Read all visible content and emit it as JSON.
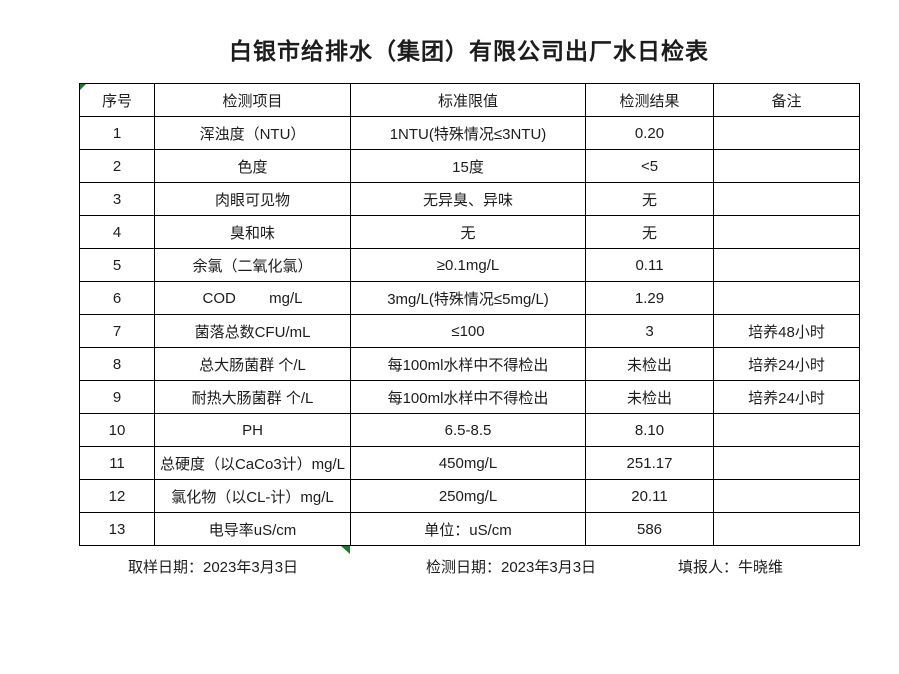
{
  "title": "白银市给排水（集团）有限公司出厂水日检表",
  "table": {
    "headers": [
      "序号",
      "检测项目",
      "标准限值",
      "检测结果",
      "备注"
    ],
    "rows": [
      {
        "no": "1",
        "item": "浑浊度（NTU）",
        "standard": "1NTU(特殊情况≤3NTU)",
        "result": "0.20",
        "remark": ""
      },
      {
        "no": "2",
        "item": "色度",
        "standard": "15度",
        "result": "<5",
        "remark": ""
      },
      {
        "no": "3",
        "item": "肉眼可见物",
        "standard": "无异臭、异味",
        "result": "无",
        "remark": ""
      },
      {
        "no": "4",
        "item": "臭和味",
        "standard": "无",
        "result": "无",
        "remark": ""
      },
      {
        "no": "5",
        "item": "余氯（二氧化氯）",
        "standard": "≥0.1mg/L",
        "result": "0.11",
        "remark": ""
      },
      {
        "no": "6",
        "item": "COD        mg/L",
        "standard": "3mg/L(特殊情况≤5mg/L)",
        "result": "1.29",
        "remark": ""
      },
      {
        "no": "7",
        "item": "菌落总数CFU/mL",
        "standard": "≤100",
        "result": "3",
        "remark": "培养48小时"
      },
      {
        "no": "8",
        "item": "总大肠菌群 个/L",
        "standard": "每100ml水样中不得检出",
        "result": "未检出",
        "remark": "培养24小时"
      },
      {
        "no": "9",
        "item": "耐热大肠菌群 个/L",
        "standard": "每100ml水样中不得检出",
        "result": "未检出",
        "remark": "培养24小时"
      },
      {
        "no": "10",
        "item": "PH",
        "standard": "6.5-8.5",
        "result": "8.10",
        "remark": ""
      },
      {
        "no": "11",
        "item": "总硬度（以CaCo3计）mg/L",
        "standard": "450mg/L",
        "result": "251.17",
        "remark": ""
      },
      {
        "no": "12",
        "item": "氯化物（以CL-计）mg/L",
        "standard": "250mg/L",
        "result": "20.11",
        "remark": ""
      },
      {
        "no": "13",
        "item": "电导率uS/cm",
        "standard": "单位：uS/cm",
        "result": "586",
        "remark": ""
      }
    ]
  },
  "footer": {
    "sampling_date": "取样日期：2023年3月3日",
    "test_date": "检测日期：2023年3月3日",
    "reporter": "填报人：牛晓维"
  },
  "colors": {
    "background": "#ffffff",
    "border": "#000000",
    "text": "#1c1c1c",
    "marker_green": "#1a7a2e"
  }
}
